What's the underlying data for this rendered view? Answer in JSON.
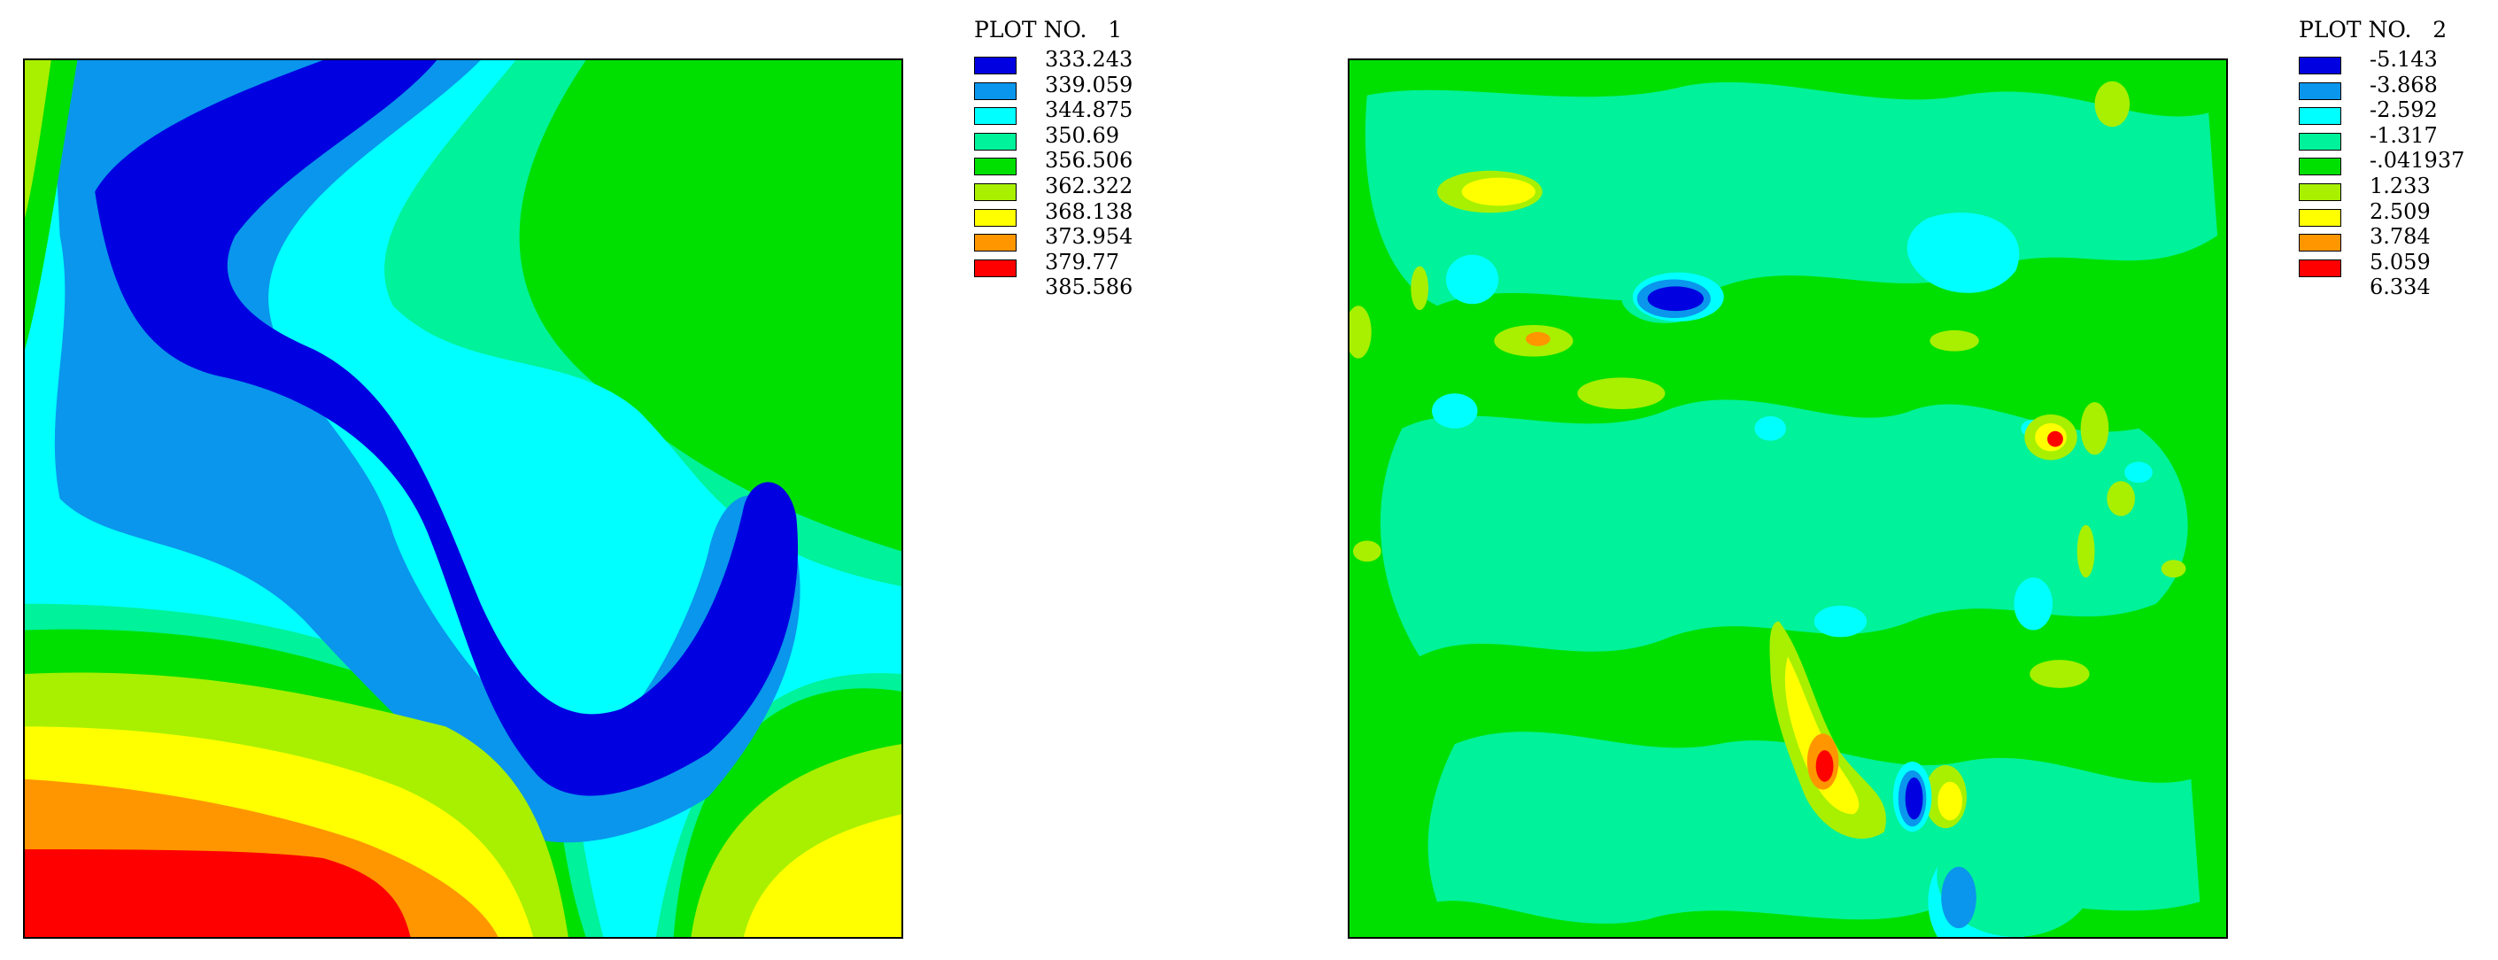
{
  "chart_data": [
    {
      "type": "heatmap",
      "title": "PLOT NO.   1",
      "legend_values": [
        "333.243",
        "339.059",
        "344.875",
        "350.69",
        "356.506",
        "362.322",
        "368.138",
        "373.954",
        "379.77",
        "385.586"
      ],
      "colors": [
        "#0000e0",
        "#0a96ec",
        "#00ffff",
        "#00f29a",
        "#00e000",
        "#a8f000",
        "#ffff00",
        "#ff9600",
        "#ff0000"
      ],
      "legend_placement": "right",
      "grid": false
    },
    {
      "type": "heatmap",
      "title": "PLOT NO.   2",
      "legend_values": [
        "-5.143",
        "-3.868",
        "-2.592",
        "-1.317",
        "-.041937",
        "1.233",
        "2.509",
        "3.784",
        "5.059",
        "6.334"
      ],
      "colors": [
        "#0000e0",
        "#0a96ec",
        "#00ffff",
        "#00f29a",
        "#00e000",
        "#a8f000",
        "#ffff00",
        "#ff9600",
        "#ff0000"
      ],
      "legend_placement": "right",
      "grid": false
    }
  ]
}
